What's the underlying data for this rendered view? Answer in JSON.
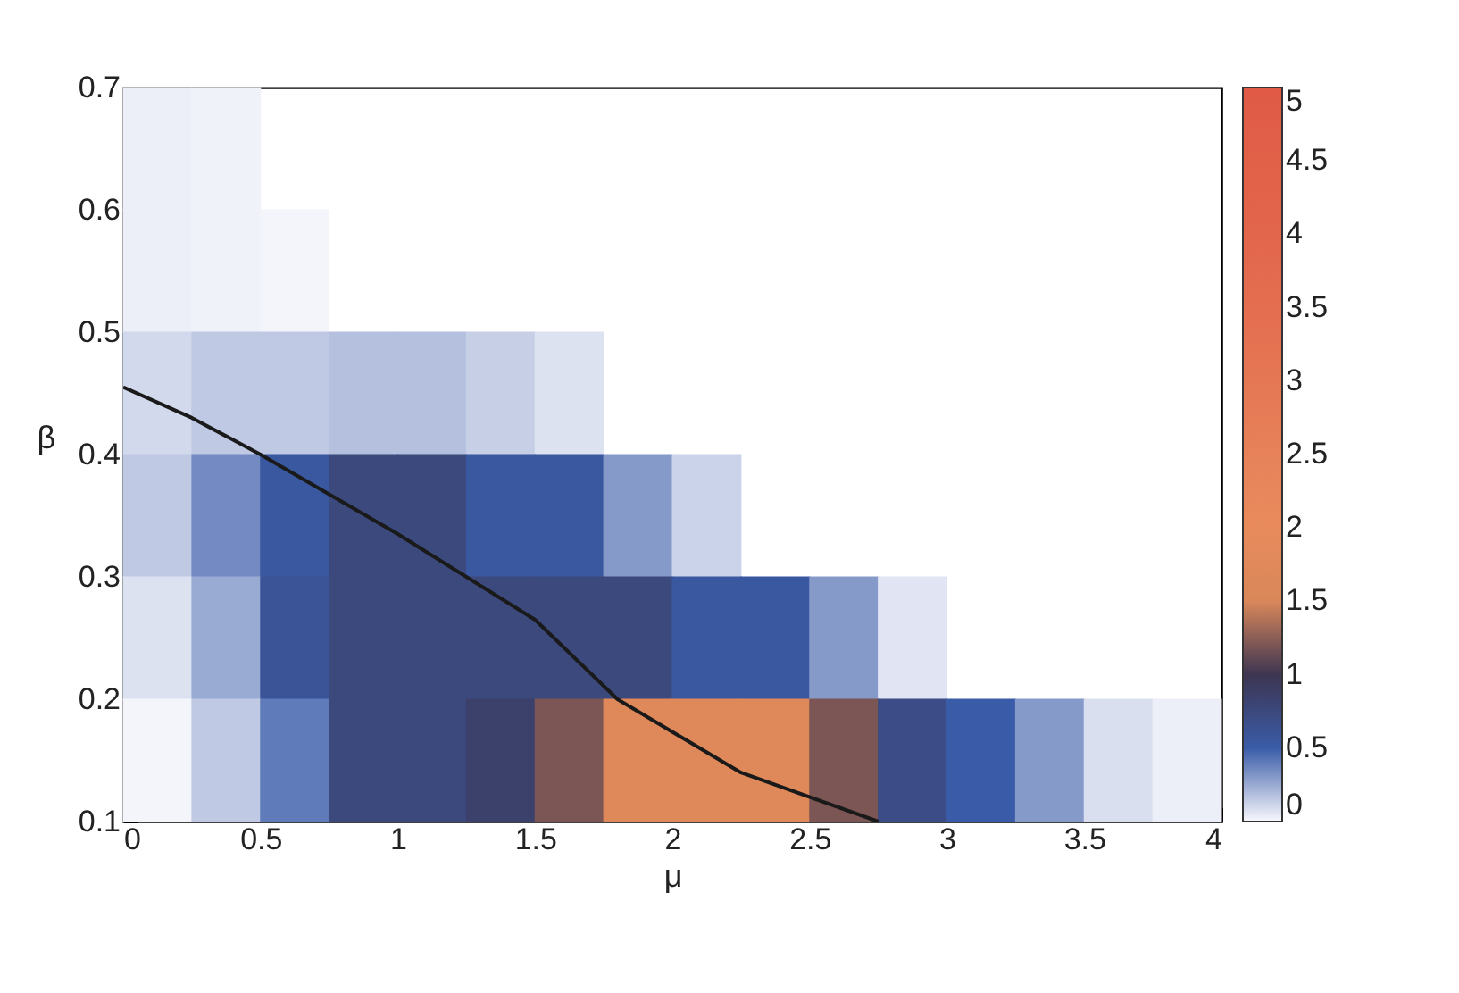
{
  "chart_data": {
    "type": "heatmap",
    "xlabel": "μ",
    "ylabel": "β",
    "x": [
      0.125,
      0.375,
      0.625,
      0.875,
      1.125,
      1.375,
      1.625,
      1.875,
      2.125,
      2.375,
      2.625,
      2.875,
      3.125,
      3.375,
      3.625,
      3.875
    ],
    "y": [
      0.65,
      0.55,
      0.45,
      0.35,
      0.25,
      0.15
    ],
    "cells": [
      [
        0.03,
        0.02,
        null,
        null,
        null,
        null,
        null,
        null,
        null,
        null,
        null,
        null,
        null,
        null,
        null,
        null
      ],
      [
        0.03,
        0.02,
        0.01,
        null,
        null,
        null,
        null,
        null,
        null,
        null,
        null,
        null,
        null,
        null,
        null,
        null
      ],
      [
        0.1,
        0.15,
        0.15,
        0.18,
        0.18,
        0.13,
        0.07,
        null,
        null,
        null,
        null,
        null,
        null,
        null,
        null,
        null
      ],
      [
        0.15,
        0.35,
        0.55,
        0.75,
        0.75,
        0.55,
        0.55,
        0.3,
        0.12,
        null,
        null,
        null,
        null,
        null,
        null,
        null
      ],
      [
        0.07,
        0.25,
        0.6,
        0.75,
        0.75,
        0.75,
        0.75,
        0.75,
        0.55,
        0.55,
        0.3,
        0.06,
        null,
        null,
        null,
        null
      ],
      [
        0.01,
        0.15,
        0.4,
        0.75,
        0.75,
        0.85,
        1.2,
        1.7,
        1.7,
        1.7,
        1.2,
        0.7,
        0.5,
        0.3,
        0.08,
        0.03
      ]
    ],
    "clim": [
      0,
      5
    ],
    "cticks": [
      0,
      0.5,
      1,
      1.5,
      2,
      2.5,
      3,
      3.5,
      4,
      4.5,
      5
    ],
    "colors": [
      "#f8f8fd",
      "#3a5ca8",
      "#3d3552",
      "#d9875a",
      "#e88b5c",
      "#e7825a",
      "#e57754",
      "#e46e50",
      "#e2664c",
      "#e16048",
      "#e05a46"
    ],
    "series": [
      {
        "type": "line",
        "color": "#1a1a1a",
        "x": [
          0,
          0.25,
          0.5,
          1,
          1.5,
          1.8,
          2.25,
          2.75
        ],
        "values": [
          0.455,
          0.43,
          0.4,
          0.335,
          0.265,
          0.2,
          0.14,
          0.1
        ]
      }
    ],
    "xlim": [
      0,
      4
    ],
    "xticks": [
      0,
      0.5,
      1,
      1.5,
      2,
      2.5,
      3,
      3.5,
      4
    ],
    "ylim": [
      0.1,
      0.7
    ],
    "yticks": [
      0.1,
      0.2,
      0.3,
      0.4,
      0.5,
      0.6,
      0.7
    ],
    "grid": false
  }
}
